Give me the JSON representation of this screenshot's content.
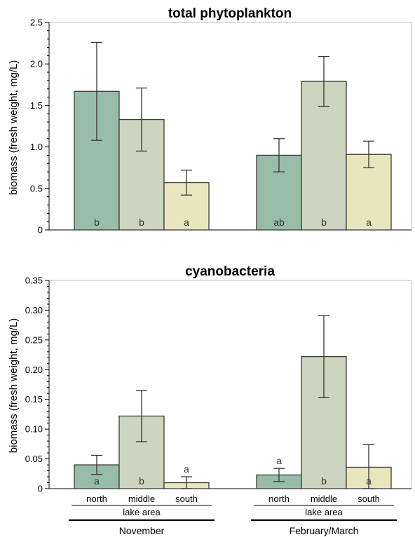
{
  "chart_data": [
    {
      "type": "bar",
      "title": "total phytoplankton",
      "ylabel": "biomass (fresh weight, mg/L)",
      "ylim": [
        0,
        2.5
      ],
      "yticks": [
        "0",
        "0.5",
        "1.0",
        "1.5",
        "2.0",
        "2.5"
      ],
      "groups": [
        "November",
        "February/March"
      ],
      "categories": [
        "north",
        "middle",
        "south"
      ],
      "values": [
        [
          1.67,
          1.33,
          0.57
        ],
        [
          0.9,
          1.79,
          0.91
        ]
      ],
      "error": [
        [
          0.59,
          0.38,
          0.15
        ],
        [
          0.2,
          0.3,
          0.16
        ]
      ],
      "sig_letters": [
        [
          "b",
          "b",
          "a"
        ],
        [
          "ab",
          "b",
          "a"
        ]
      ],
      "colors": [
        "#97bda8",
        "#cdd4bf",
        "#e9e6bd"
      ]
    },
    {
      "type": "bar",
      "title": "cyanobacteria",
      "ylabel": "biomass (fresh weight, mg/L)",
      "ylim": [
        0,
        0.35
      ],
      "yticks": [
        "0",
        "0.05",
        "0.10",
        "0.15",
        "0.20",
        "0.25",
        "0.30",
        "0.35"
      ],
      "groups": [
        "November",
        "February/March"
      ],
      "categories": [
        "north",
        "middle",
        "south"
      ],
      "values": [
        [
          0.04,
          0.122,
          0.01
        ],
        [
          0.023,
          0.222,
          0.036
        ]
      ],
      "error": [
        [
          0.016,
          0.043,
          0.01
        ],
        [
          0.011,
          0.069,
          0.038
        ]
      ],
      "sig_letters": [
        [
          "a",
          "b",
          "a"
        ],
        [
          "a",
          "b",
          "a"
        ]
      ],
      "colors": [
        "#97bda8",
        "#cdd4bf",
        "#e9e6bd"
      ]
    }
  ],
  "x_axis": {
    "categories": [
      "north",
      "middle",
      "south"
    ],
    "category_label": "lake area",
    "groups": [
      "November",
      "February/March"
    ]
  }
}
